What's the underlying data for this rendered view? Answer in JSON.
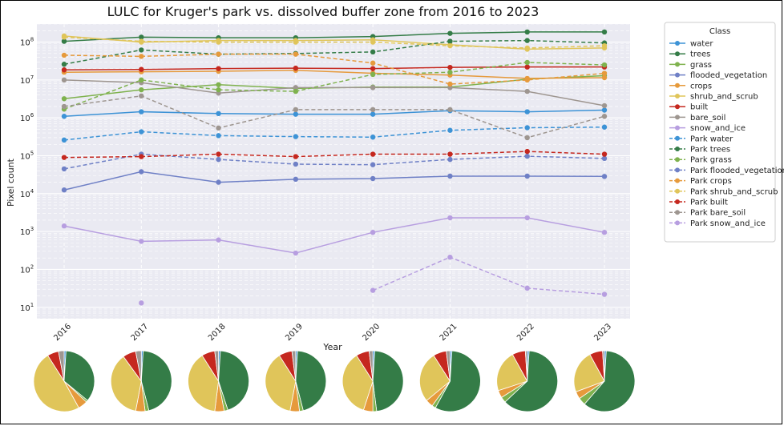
{
  "chart_data": {
    "type": "line",
    "title": "LULC for Kruger's park vs. dissolved buffer zone from 2016 to 2023",
    "xlabel": "Year",
    "ylabel": "Pixel count",
    "yscale": "log",
    "ylim": [
      5,
      300000000
    ],
    "grid": true,
    "legend_title": "Class",
    "legend_position": "right",
    "x": [
      "2016",
      "2017",
      "2018",
      "2019",
      "2020",
      "2021",
      "2022",
      "2023"
    ],
    "y_ticks": [
      "10^1",
      "10^2",
      "10^3",
      "10^4",
      "10^5",
      "10^6",
      "10^7",
      "10^8"
    ],
    "series": [
      {
        "name": "water",
        "color": "#3d93d6",
        "dash": false,
        "values": [
          1100000,
          1450000,
          1300000,
          1250000,
          1250000,
          1550000,
          1450000,
          1600000
        ]
      },
      {
        "name": "trees",
        "color": "#347c47",
        "dash": false,
        "values": [
          105000000,
          135000000,
          130000000,
          130000000,
          140000000,
          170000000,
          185000000,
          185000000
        ]
      },
      {
        "name": "grass",
        "color": "#7fb24e",
        "dash": false,
        "values": [
          3200000,
          5500000,
          7500000,
          6000000,
          6500000,
          6500000,
          10500000,
          13000000
        ]
      },
      {
        "name": "flooded_vegetation",
        "color": "#6f80c6",
        "dash": false,
        "values": [
          12500,
          38000,
          20000,
          24000,
          25000,
          29000,
          29000,
          28500
        ]
      },
      {
        "name": "crops",
        "color": "#e69a3c",
        "dash": false,
        "values": [
          16000000,
          16500000,
          17000000,
          18000000,
          15000000,
          13500000,
          11000000,
          11500000
        ]
      },
      {
        "name": "shrub_and_scrub",
        "color": "#e0c55a",
        "dash": false,
        "values": [
          145000000,
          100000000,
          110000000,
          110000000,
          115000000,
          85000000,
          65000000,
          70000000
        ]
      },
      {
        "name": "built",
        "color": "#c5281f",
        "dash": false,
        "values": [
          18500000,
          19000000,
          20000000,
          20500000,
          20000000,
          21500000,
          22000000,
          22000000
        ]
      },
      {
        "name": "bare_soil",
        "color": "#9e9690",
        "dash": false,
        "values": [
          10000000,
          8500000,
          4500000,
          6300000,
          6300000,
          6300000,
          5000000,
          2100000
        ]
      },
      {
        "name": "snow_and_ice",
        "color": "#b79ee0",
        "dash": false,
        "values": [
          1400,
          550,
          600,
          270,
          950,
          2300,
          2300,
          950
        ]
      },
      {
        "name": "Park water",
        "color": "#3d93d6",
        "dash": true,
        "values": [
          260000,
          430000,
          340000,
          320000,
          310000,
          470000,
          550000,
          570000
        ]
      },
      {
        "name": "Park trees",
        "color": "#347c47",
        "dash": true,
        "values": [
          26000000,
          62000000,
          48000000,
          50000000,
          55000000,
          105000000,
          110000000,
          95000000
        ]
      },
      {
        "name": "Park grass",
        "color": "#7fb24e",
        "dash": true,
        "values": [
          1700000,
          10000000,
          5500000,
          5000000,
          14000000,
          16000000,
          29000000,
          25000000
        ]
      },
      {
        "name": "Park flooded_vegetation",
        "color": "#6f80c6",
        "dash": true,
        "values": [
          45000,
          110000,
          80000,
          60000,
          58000,
          80000,
          97000,
          85000
        ]
      },
      {
        "name": "Park crops",
        "color": "#e69a3c",
        "dash": true,
        "values": [
          45000000,
          42000000,
          48000000,
          48000000,
          28000000,
          7800000,
          10000000,
          15000000
        ]
      },
      {
        "name": "Park shrub_and_scrub",
        "color": "#e0c55a",
        "dash": true,
        "values": [
          135000000,
          105000000,
          100000000,
          100000000,
          100000000,
          80000000,
          70000000,
          80000000
        ]
      },
      {
        "name": "Park built",
        "color": "#c5281f",
        "dash": true,
        "values": [
          90000,
          95000,
          110000,
          95000,
          110000,
          110000,
          130000,
          110000
        ]
      },
      {
        "name": "Park bare_soil",
        "color": "#9e9690",
        "dash": true,
        "values": [
          2000000,
          3800000,
          540000,
          1650000,
          1650000,
          1650000,
          300000,
          1100000
        ]
      },
      {
        "name": "Park snow_and_ice",
        "color": "#b79ee0",
        "dash": true,
        "values": [
          null,
          13,
          null,
          null,
          28,
          210,
          32,
          22
        ]
      }
    ],
    "pies": [
      {
        "year": "2016",
        "slices": [
          [
            "#3d93d6",
            1
          ],
          [
            "#347c47",
            35
          ],
          [
            "#7fb24e",
            1
          ],
          [
            "#e69a3c",
            5
          ],
          [
            "#e0c55a",
            49
          ],
          [
            "#c5281f",
            6
          ],
          [
            "#9e9690",
            3
          ]
        ]
      },
      {
        "year": "2017",
        "slices": [
          [
            "#3d93d6",
            1
          ],
          [
            "#347c47",
            45
          ],
          [
            "#7fb24e",
            2
          ],
          [
            "#e69a3c",
            5
          ],
          [
            "#e0c55a",
            37
          ],
          [
            "#c5281f",
            7
          ],
          [
            "#9e9690",
            3
          ]
        ]
      },
      {
        "year": "2018",
        "slices": [
          [
            "#3d93d6",
            1
          ],
          [
            "#347c47",
            44
          ],
          [
            "#7fb24e",
            2
          ],
          [
            "#e69a3c",
            5
          ],
          [
            "#e0c55a",
            39
          ],
          [
            "#c5281f",
            7
          ],
          [
            "#9e9690",
            2
          ]
        ]
      },
      {
        "year": "2019",
        "slices": [
          [
            "#3d93d6",
            1
          ],
          [
            "#347c47",
            45
          ],
          [
            "#7fb24e",
            2
          ],
          [
            "#e69a3c",
            5
          ],
          [
            "#e0c55a",
            38
          ],
          [
            "#c5281f",
            7
          ],
          [
            "#9e9690",
            2
          ]
        ]
      },
      {
        "year": "2020",
        "slices": [
          [
            "#3d93d6",
            1
          ],
          [
            "#347c47",
            47
          ],
          [
            "#7fb24e",
            2
          ],
          [
            "#e69a3c",
            5
          ],
          [
            "#e0c55a",
            36
          ],
          [
            "#c5281f",
            7
          ],
          [
            "#9e9690",
            2
          ]
        ]
      },
      {
        "year": "2021",
        "slices": [
          [
            "#3d93d6",
            1
          ],
          [
            "#347c47",
            57
          ],
          [
            "#7fb24e",
            2
          ],
          [
            "#e69a3c",
            4
          ],
          [
            "#e0c55a",
            27
          ],
          [
            "#c5281f",
            7
          ],
          [
            "#9e9690",
            2
          ]
        ]
      },
      {
        "year": "2022",
        "slices": [
          [
            "#3d93d6",
            1
          ],
          [
            "#347c47",
            62
          ],
          [
            "#7fb24e",
            3
          ],
          [
            "#e69a3c",
            4
          ],
          [
            "#e0c55a",
            22
          ],
          [
            "#c5281f",
            7
          ],
          [
            "#9e9690",
            1
          ]
        ]
      },
      {
        "year": "2023",
        "slices": [
          [
            "#3d93d6",
            1
          ],
          [
            "#347c47",
            61
          ],
          [
            "#7fb24e",
            4
          ],
          [
            "#e69a3c",
            4
          ],
          [
            "#e0c55a",
            23
          ],
          [
            "#c5281f",
            7
          ],
          [
            "#9e9690",
            1
          ]
        ]
      }
    ]
  }
}
